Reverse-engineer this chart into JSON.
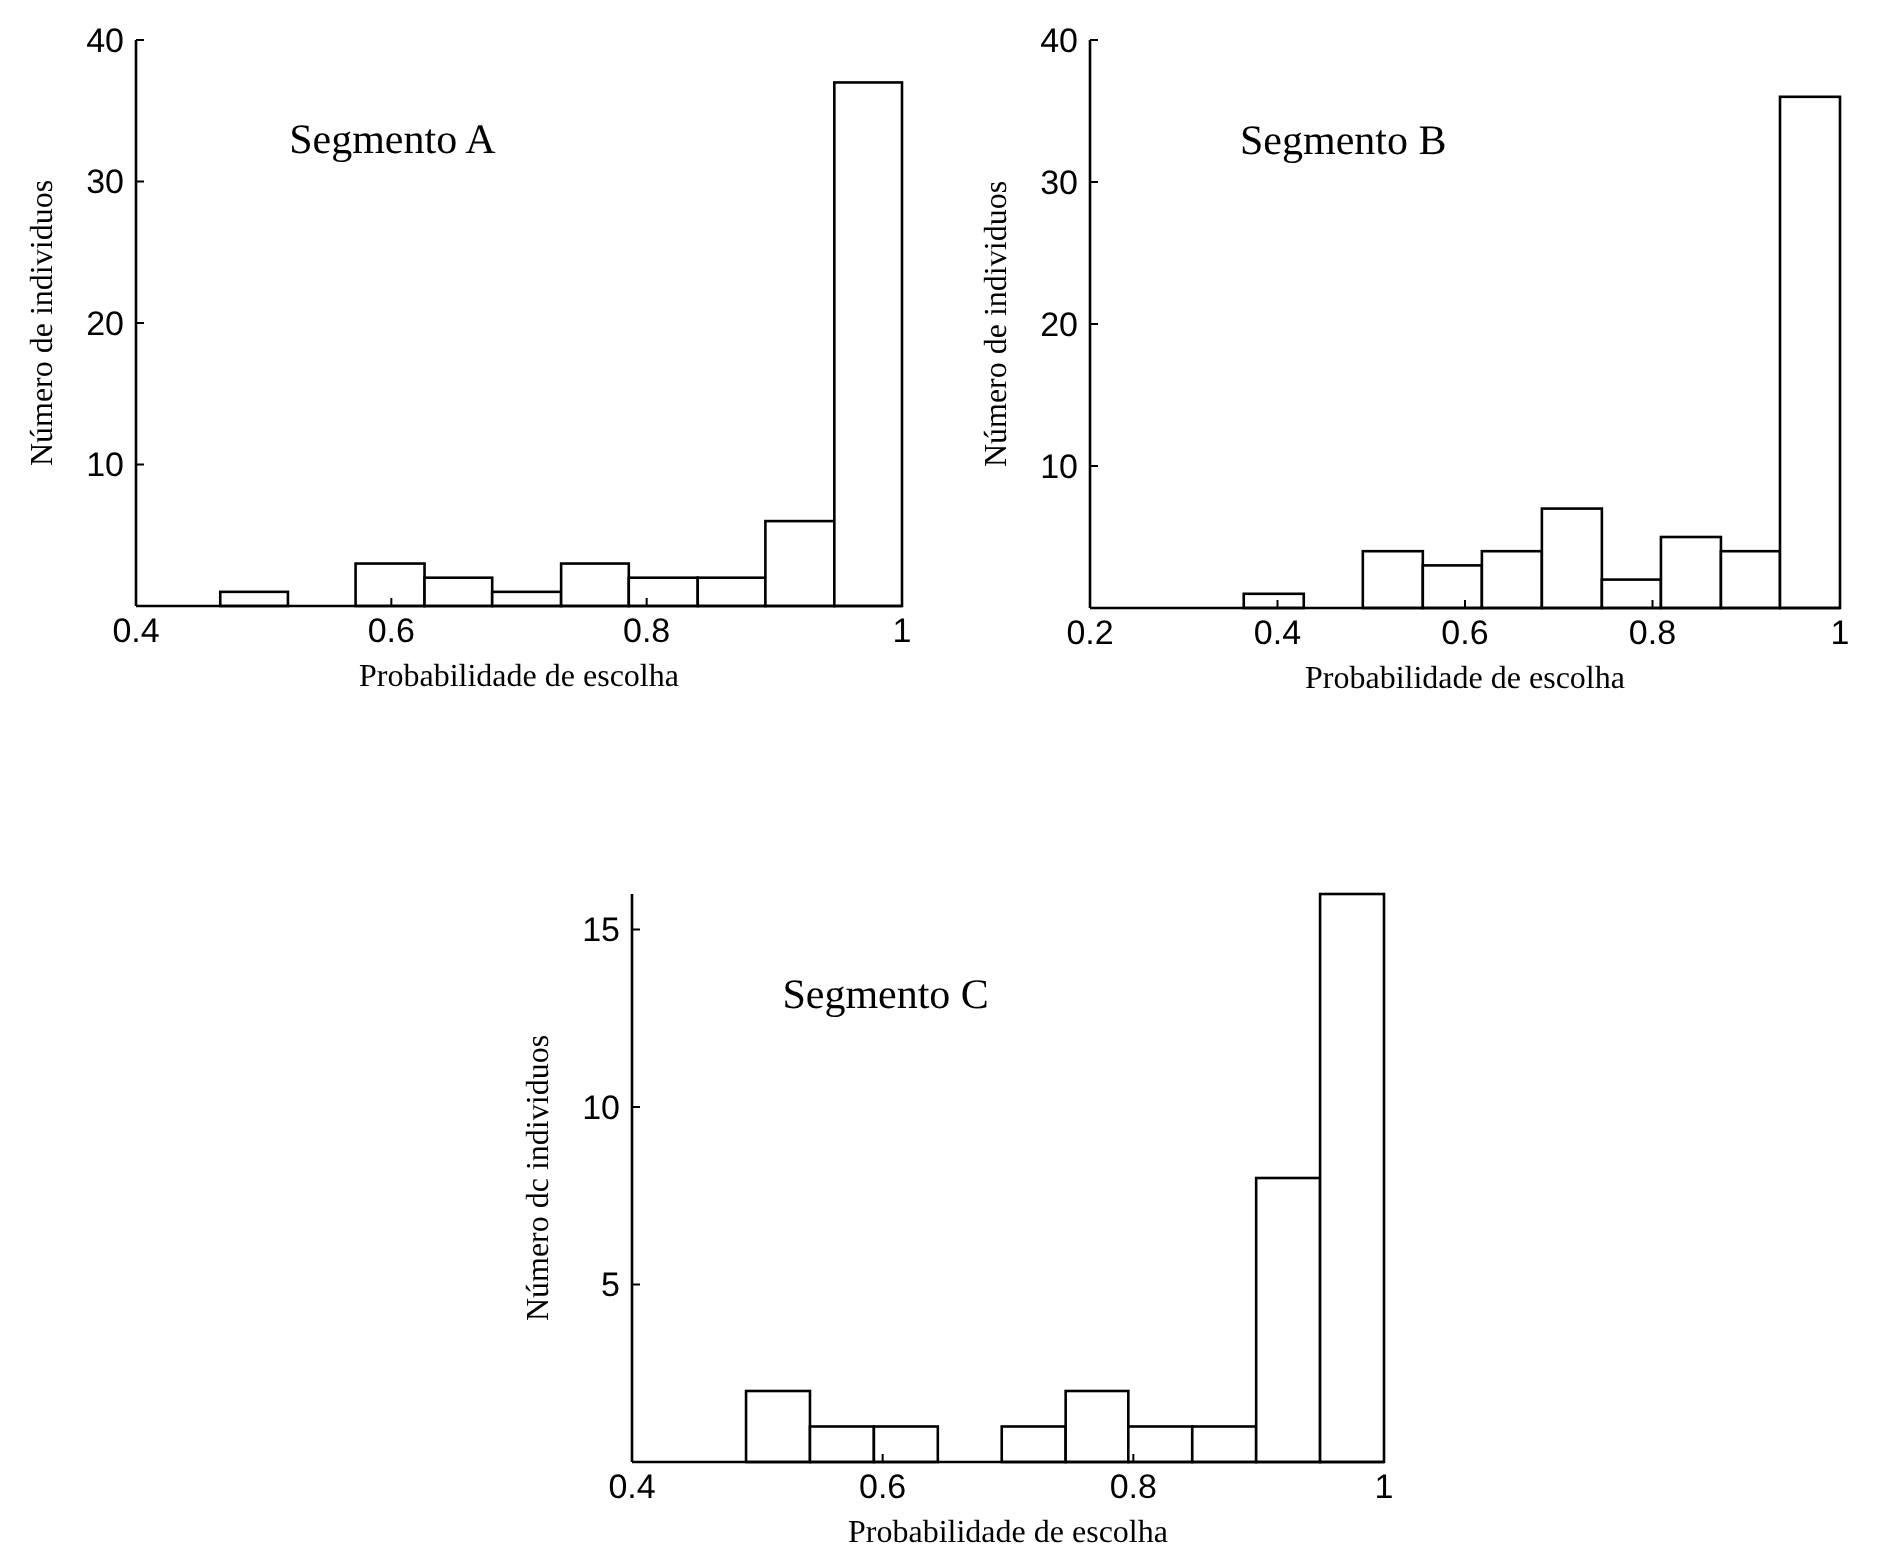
{
  "chart_data": [
    {
      "type": "histogram",
      "title": "Segmento A",
      "xlabel": "Probabilidade de escolha",
      "ylabel": "Número de individuos",
      "bins": [
        0.466,
        0.519,
        0.572,
        0.626,
        0.679,
        0.733,
        0.786,
        0.84,
        0.893,
        0.947,
        1.0
      ],
      "values": [
        1,
        0,
        3,
        2,
        1,
        3,
        2,
        2,
        6,
        37
      ],
      "color": "#ffffff",
      "xlim": [
        0.4,
        1
      ],
      "xticks": [
        0.4,
        0.6,
        0.8,
        1
      ],
      "ylim": [
        0,
        40
      ],
      "yticks": [
        10,
        20,
        30,
        40
      ]
    },
    {
      "type": "histogram",
      "title": "Segmento B",
      "xlabel": "Probabilidade de escolha",
      "ylabel": "Número de individuos",
      "bins": [
        0.364,
        0.428,
        0.491,
        0.555,
        0.618,
        0.682,
        0.746,
        0.809,
        0.873,
        0.936,
        1.0
      ],
      "values": [
        1,
        0,
        4,
        3,
        4,
        7,
        2,
        5,
        4,
        36
      ],
      "color": "#ffffff",
      "xlim": [
        0.2,
        1
      ],
      "xticks": [
        0.2,
        0.4,
        0.6,
        0.8,
        1
      ],
      "ylim": [
        0,
        40
      ],
      "yticks": [
        10,
        20,
        30,
        40
      ]
    },
    {
      "type": "histogram",
      "title": "Segmento C",
      "xlabel": "Probabilidade de escolha",
      "ylabel": "Número dc individuos",
      "bins": [
        0.491,
        0.542,
        0.593,
        0.644,
        0.695,
        0.746,
        0.796,
        0.847,
        0.898,
        0.949,
        1.0
      ],
      "values": [
        2,
        1,
        1,
        0,
        1,
        2,
        1,
        1,
        8,
        16
      ],
      "color": "#ffffff",
      "xlim": [
        0.4,
        1
      ],
      "xticks": [
        0.4,
        0.6,
        0.8,
        1
      ],
      "ylim": [
        0,
        16
      ],
      "yticks": [
        5,
        10,
        15
      ]
    }
  ]
}
